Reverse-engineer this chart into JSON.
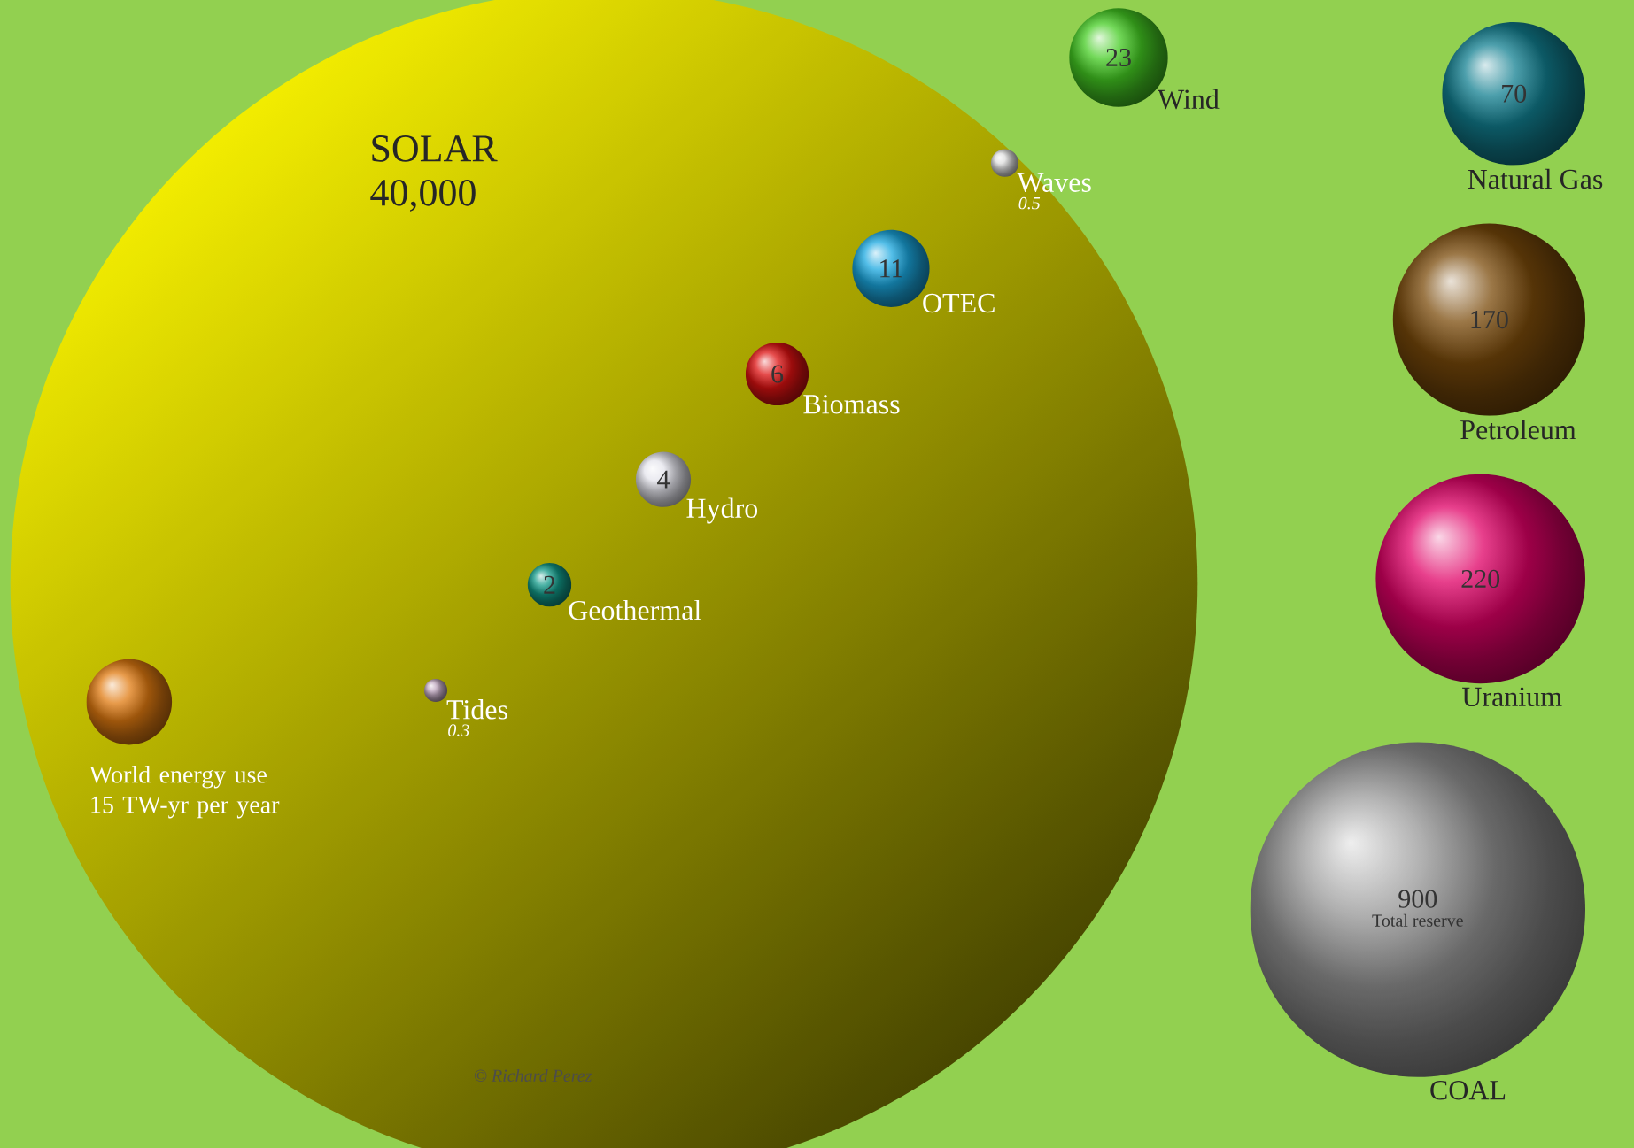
{
  "chart_data": {
    "type": "other",
    "categories": [
      "SOLAR",
      "Wind",
      "Waves",
      "OTEC",
      "Biomass",
      "Hydro",
      "Geothermal",
      "Tides",
      "Natural Gas",
      "Petroleum",
      "Uranium",
      "COAL",
      "World energy use"
    ],
    "values": [
      40000,
      23,
      0.5,
      11,
      6,
      4,
      2,
      0.3,
      70,
      170,
      220,
      900,
      15
    ],
    "value_labels": [
      "40,000",
      "23",
      "0.5",
      "11",
      "6",
      "4",
      "2",
      "0.3",
      "70",
      "170",
      "220",
      "900",
      "15 TW-yr per year"
    ],
    "colors": [
      "#f2ec00",
      "#44cc22",
      "#dddddd",
      "#1aa8e0",
      "#dd1111",
      "#e4e4ec",
      "#119988",
      "#c0a8c0",
      "#117f90",
      "#7a4a0a",
      "#e00066",
      "#969696",
      "#e07a10"
    ],
    "annotations": [
      "Total reserve",
      "© Richard Perez"
    ]
  }
}
